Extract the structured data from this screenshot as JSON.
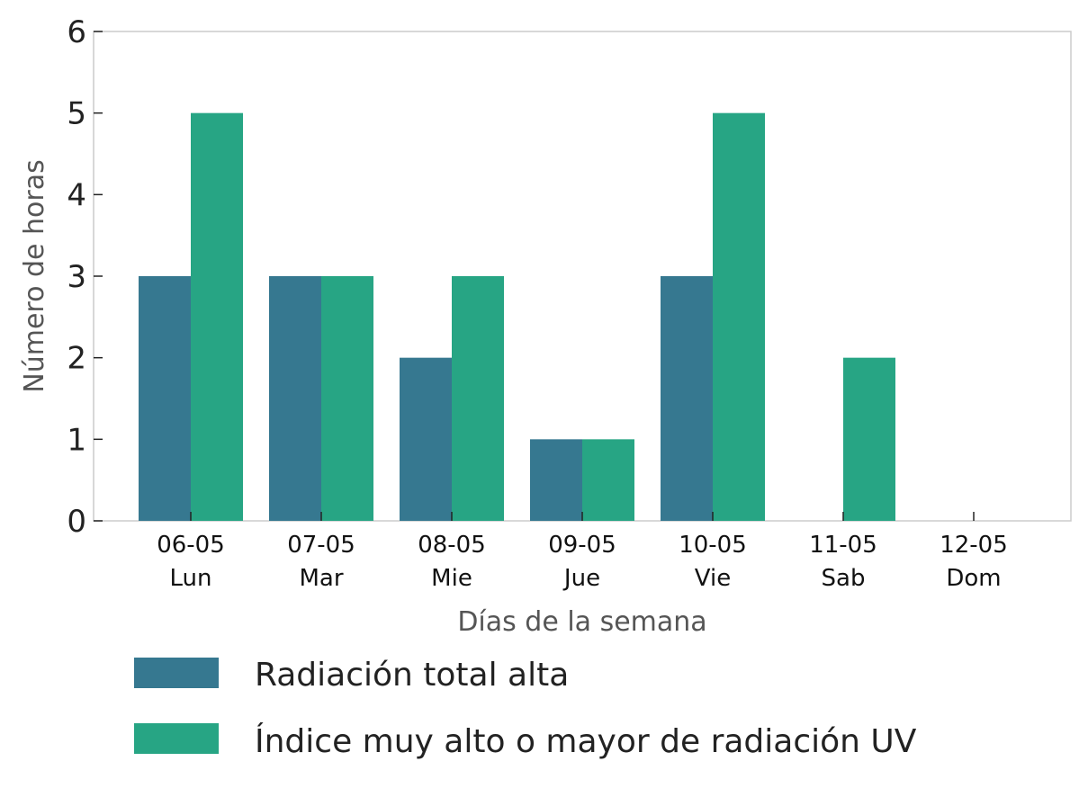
{
  "chart_data": {
    "type": "bar",
    "title": "",
    "xlabel": "Días de la semana",
    "ylabel": "Número de horas",
    "ylim": [
      0,
      6
    ],
    "yticks": [
      0,
      1,
      2,
      3,
      4,
      5,
      6
    ],
    "categories": [
      {
        "date": "06-05",
        "day": "Lun"
      },
      {
        "date": "07-05",
        "day": "Mar"
      },
      {
        "date": "08-05",
        "day": "Mie"
      },
      {
        "date": "09-05",
        "day": "Jue"
      },
      {
        "date": "10-05",
        "day": "Vie"
      },
      {
        "date": "11-05",
        "day": "Sab"
      },
      {
        "date": "12-05",
        "day": "Dom"
      }
    ],
    "series": [
      {
        "name": "Radiación total alta",
        "color": "#367890",
        "values": [
          3,
          3,
          2,
          1,
          3,
          0,
          0
        ]
      },
      {
        "name": "Índice muy alto o mayor de radiación UV",
        "color": "#27a584",
        "values": [
          5,
          3,
          3,
          1,
          5,
          2,
          0
        ]
      }
    ],
    "grid": false,
    "legend_position": "bottom"
  }
}
